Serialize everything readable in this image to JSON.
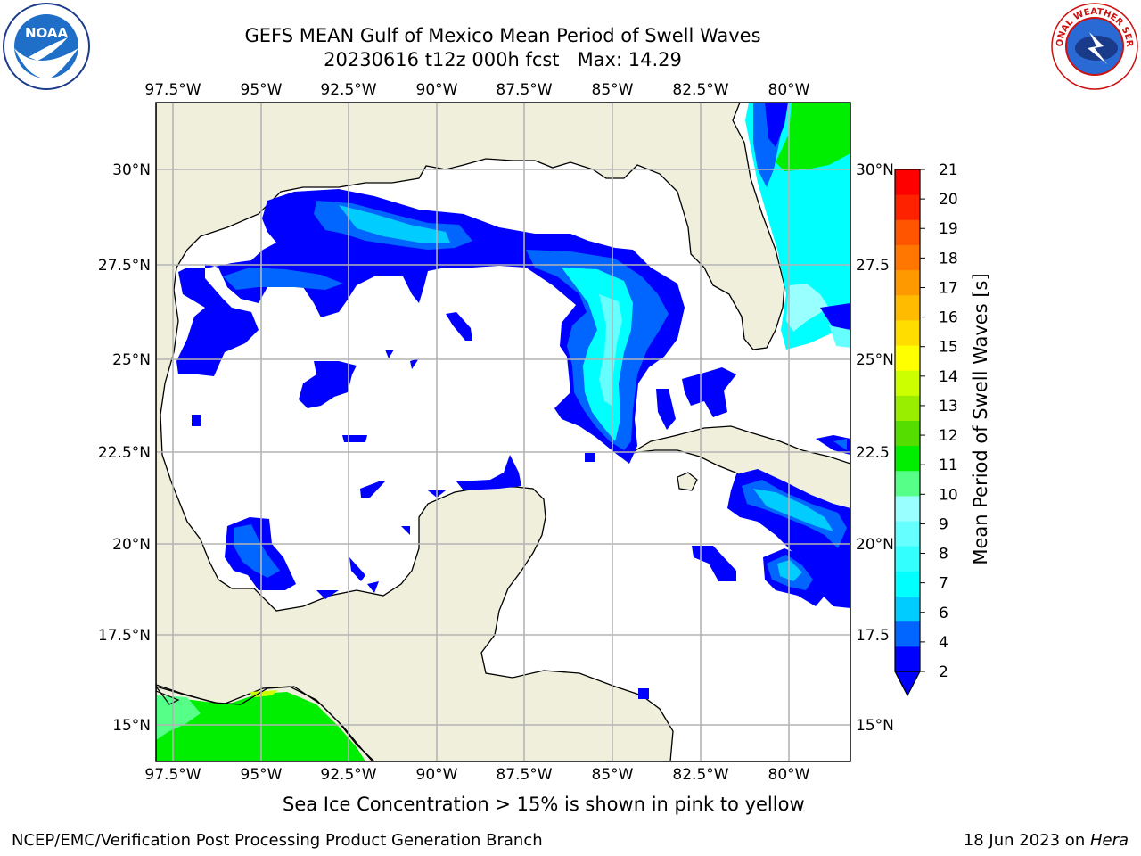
{
  "header": {
    "title_line1": "GEFS MEAN Gulf of Mexico Mean Period of Swell Waves",
    "title_line2": "20230616 t12z 000h fcst   Max: 14.29"
  },
  "logos": {
    "left": "NOAA",
    "right": "NATIONAL WEATHER SERVICE"
  },
  "map": {
    "lon_labels": [
      "97.5°W",
      "95°W",
      "92.5°W",
      "90°W",
      "87.5°W",
      "85°W",
      "82.5°W",
      "80°W"
    ],
    "lat_labels": [
      "30°N",
      "27.5°N",
      "25°N",
      "22.5°N",
      "20°N",
      "17.5°N",
      "15°N"
    ],
    "lat_labels_right": [
      "30°N",
      "27.5",
      "25°N",
      "22.5",
      "20°N",
      "17.5",
      "15°N"
    ]
  },
  "colorbar": {
    "label": "Mean Period of Swell Waves [s]",
    "ticks": [
      "2",
      "4",
      "6",
      "7",
      "8",
      "9",
      "10",
      "11",
      "12",
      "13",
      "14",
      "15",
      "16",
      "17",
      "18",
      "19",
      "20",
      "21"
    ],
    "colors": [
      "#0000ff",
      "#0066ff",
      "#00ccff",
      "#00ffff",
      "#33ffff",
      "#66ffff",
      "#99ffff",
      "#55ff88",
      "#00ee00",
      "#55dd00",
      "#99ee00",
      "#ccff00",
      "#ffff00",
      "#ffdd00",
      "#ffbb00",
      "#ff9900",
      "#ff7700",
      "#ff5500",
      "#ff2200",
      "#ff0000"
    ]
  },
  "notes": {
    "sea_ice": "Sea Ice Concentration > 15% is shown in pink to yellow"
  },
  "footer": {
    "left": "NCEP/EMC/Verification Post Processing Product Generation Branch",
    "date": "18 Jun 2023 on ",
    "host": "Hera"
  }
}
